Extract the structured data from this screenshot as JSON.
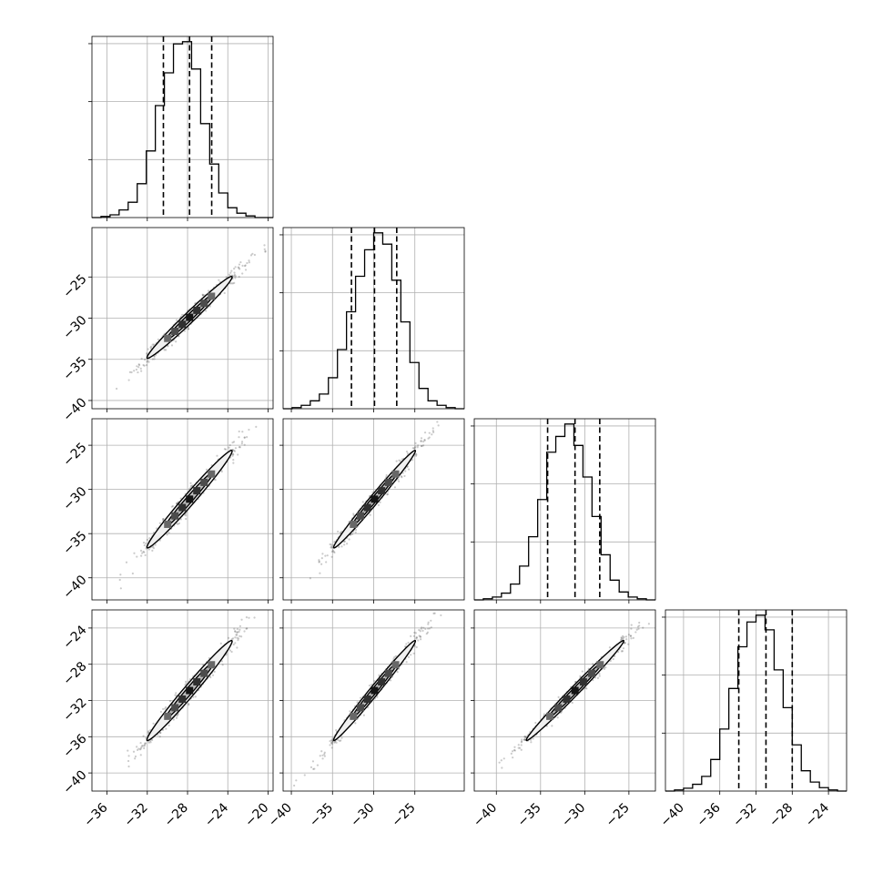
{
  "chart_data": {
    "type": "corner",
    "n_params": 4,
    "params": [
      {
        "name": "",
        "mean": -27.8,
        "sd": 2.3,
        "hist_range": [
          -37.5,
          -19.5
        ],
        "plot_range": [
          -37.5,
          -19.5
        ],
        "ticks": [
          -36,
          -32,
          -28,
          -24,
          -20
        ],
        "tick_labels": [
          "−36",
          "−32",
          "−28",
          "−24",
          "−20"
        ],
        "quantiles": [
          -30.4,
          -27.8,
          -25.6
        ]
      },
      {
        "name": "",
        "mean": -29.9,
        "sd": 2.7,
        "hist_range": [
          -41,
          -19
        ],
        "plot_range": [
          -41,
          -19
        ],
        "ticks": [
          -40,
          -35,
          -30,
          -25
        ],
        "tick_labels": [
          "−40",
          "−35",
          "−30",
          "−25"
        ],
        "quantiles": [
          -32.7,
          -29.9,
          -27.2
        ]
      },
      {
        "name": "",
        "mean": -31.1,
        "sd": 3.0,
        "hist_range": [
          -42.5,
          -22
        ],
        "plot_range": [
          -42.5,
          -22
        ],
        "ticks": [
          -40,
          -35,
          -30,
          -25
        ],
        "tick_labels": [
          "−40",
          "−35",
          "−30",
          "−25"
        ],
        "quantiles": [
          -34.2,
          -31.1,
          -28.3
        ]
      },
      {
        "name": "",
        "mean": -30.9,
        "sd": 3.0,
        "hist_range": [
          -42,
          -22
        ],
        "plot_range": [
          -42,
          -22
        ],
        "ticks": [
          -40,
          -36,
          -32,
          -28,
          -24
        ],
        "tick_labels": [
          "−40",
          "−36",
          "−32",
          "−28",
          "−24"
        ],
        "quantiles": [
          -33.9,
          -30.9,
          -28.0
        ]
      }
    ],
    "histograms": [
      {
        "param": 0,
        "bin_edges_range": [
          -37.5,
          -19.5
        ],
        "counts": [
          0,
          2,
          5,
          14,
          28,
          62,
          122,
          205,
          265,
          318,
          322,
          272,
          172,
          98,
          45,
          18,
          8,
          3,
          0,
          0
        ]
      },
      {
        "param": 1,
        "bin_edges_range": [
          -41,
          -19
        ],
        "counts": [
          0,
          2,
          6,
          14,
          26,
          55,
          105,
          172,
          235,
          282,
          312,
          292,
          228,
          154,
          82,
          36,
          14,
          6,
          2,
          0
        ]
      },
      {
        "param": 2,
        "bin_edges_range": [
          -42.5,
          -22
        ],
        "counts": [
          0,
          2,
          5,
          12,
          28,
          60,
          112,
          178,
          262,
          290,
          312,
          274,
          218,
          148,
          80,
          35,
          14,
          5,
          2,
          0
        ]
      },
      {
        "param": 3,
        "bin_edges_range": [
          -42,
          -22
        ],
        "counts": [
          0,
          2,
          5,
          12,
          26,
          56,
          110,
          182,
          256,
          300,
          312,
          286,
          215,
          148,
          82,
          36,
          16,
          6,
          2,
          0
        ]
      }
    ],
    "correlations": [
      [
        1.0,
        0.985,
        0.985,
        0.985
      ],
      [
        0.985,
        1.0,
        0.99,
        0.99
      ],
      [
        0.985,
        0.99,
        1.0,
        0.992
      ],
      [
        0.985,
        0.99,
        0.992,
        1.0
      ]
    ],
    "contour_levels_sigma": [
      1,
      2
    ],
    "quantile_probs": [
      0.16,
      0.5,
      0.84
    ],
    "grid": true,
    "colors": {
      "axis": "#000000",
      "grid": "#b0b0b0",
      "points": "#444444",
      "contour_outer": "#f0f0f0",
      "contour_inner": "#bdbdbd",
      "density_dark": "#111111"
    },
    "n_scatter_points": 650,
    "seed": 7
  }
}
